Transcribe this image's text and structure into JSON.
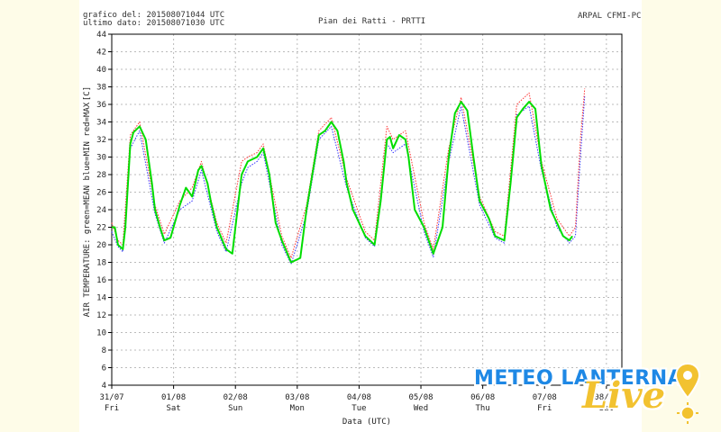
{
  "header": {
    "graph_date": "grafico del: 201508071044 UTC",
    "last_data": "ultimo dato: 201508071030 UTC",
    "station": "Pian dei Ratti - PRTTI",
    "source": "ARPAL CFMI-PC"
  },
  "logo": {
    "main": "METEO LANTERNA",
    "live": "Live"
  },
  "colors": {
    "mean": "#00dd00",
    "min": "#3333ff",
    "max": "#ff3333",
    "grid": "#bbbbbb",
    "axis": "#000000"
  },
  "chart_data": {
    "type": "line",
    "title": "Pian dei Ratti - PRTTI",
    "xlabel": "Data (UTC)",
    "ylabel": "AIR TEMPERATURE: green=MEAN  blue=MIN  red=MAX",
    "yunit": "[C]",
    "ylim": [
      4,
      44
    ],
    "yticks": [
      4,
      6,
      8,
      10,
      12,
      14,
      16,
      18,
      20,
      22,
      24,
      26,
      28,
      30,
      32,
      34,
      36,
      38,
      40,
      42,
      44
    ],
    "xlim": [
      0,
      8.25
    ],
    "xticks": [
      {
        "date": "31/07",
        "day": "Fri"
      },
      {
        "date": "01/08",
        "day": "Sat"
      },
      {
        "date": "02/08",
        "day": "Sun"
      },
      {
        "date": "03/08",
        "day": "Mon"
      },
      {
        "date": "04/08",
        "day": "Tue"
      },
      {
        "date": "05/08",
        "day": "Wed"
      },
      {
        "date": "06/08",
        "day": "Thu"
      },
      {
        "date": "07/08",
        "day": "Fri"
      },
      {
        "date": "08/08",
        "day": "Sat"
      }
    ],
    "grid": true,
    "series": [
      {
        "name": "MEAN",
        "color": "#00dd00",
        "x": [
          0.0,
          0.05,
          0.1,
          0.18,
          0.22,
          0.3,
          0.35,
          0.45,
          0.55,
          0.65,
          0.7,
          0.78,
          0.85,
          0.95,
          1.1,
          1.2,
          1.3,
          1.4,
          1.45,
          1.55,
          1.6,
          1.7,
          1.85,
          1.95,
          2.1,
          2.2,
          2.35,
          2.45,
          2.55,
          2.65,
          2.75,
          2.9,
          3.05,
          3.15,
          3.35,
          3.45,
          3.55,
          3.65,
          3.75,
          3.8,
          3.9,
          4.0,
          4.1,
          4.25,
          4.35,
          4.45,
          4.5,
          4.55,
          4.65,
          4.75,
          4.8,
          4.9,
          5.05,
          5.2,
          5.35,
          5.45,
          5.55,
          5.65,
          5.75,
          5.85,
          5.95,
          6.1,
          6.2,
          6.35,
          6.45,
          6.55,
          6.65,
          6.75,
          6.85,
          6.95,
          7.1,
          7.2,
          7.3,
          7.4,
          7.45
        ],
        "values": [
          22,
          22,
          20,
          19.5,
          22,
          31.5,
          32.8,
          33.5,
          32,
          27,
          24,
          22,
          20.5,
          20.8,
          24.5,
          26.5,
          25.5,
          28.5,
          29,
          27,
          25,
          22,
          19.5,
          19,
          28,
          29.5,
          30,
          31,
          28,
          22.5,
          20.5,
          18,
          18.5,
          24,
          32.5,
          33,
          34,
          33,
          29.5,
          27,
          24,
          22.5,
          21,
          20,
          25,
          32,
          32.3,
          31,
          32.5,
          32,
          30,
          24,
          22,
          19,
          22,
          30,
          35,
          36.3,
          35.3,
          30,
          25,
          23,
          21,
          20.5,
          27,
          34.5,
          35.5,
          36.3,
          35.5,
          29,
          24,
          22.5,
          21,
          20.5,
          21
        ]
      },
      {
        "name": "MIN",
        "color": "#3333ff",
        "x": [
          0.0,
          0.1,
          0.18,
          0.3,
          0.45,
          0.7,
          0.85,
          1.1,
          1.3,
          1.45,
          1.7,
          1.85,
          2.1,
          2.2,
          2.35,
          2.45,
          2.75,
          2.9,
          3.15,
          3.35,
          3.55,
          3.8,
          4.1,
          4.25,
          4.45,
          4.55,
          4.75,
          5.05,
          5.2,
          5.45,
          5.65,
          5.95,
          6.2,
          6.35,
          6.55,
          6.75,
          6.95,
          7.2,
          7.4,
          7.5,
          7.58,
          7.65
        ],
        "values": [
          21.5,
          19.8,
          19.2,
          31,
          33,
          23.5,
          20.2,
          24,
          25,
          28.5,
          21.5,
          19.2,
          27,
          28.8,
          29.5,
          30.5,
          20,
          17.8,
          23.5,
          32,
          33.5,
          26.5,
          20.8,
          19.8,
          31.5,
          30.5,
          31.5,
          21.5,
          18.6,
          29.5,
          35.8,
          24.5,
          20.8,
          20.2,
          34.8,
          35.8,
          28.5,
          22,
          20.2,
          21,
          30,
          37
        ]
      },
      {
        "name": "MAX",
        "color": "#ff3333",
        "x": [
          0.0,
          0.1,
          0.18,
          0.3,
          0.45,
          0.7,
          0.85,
          1.1,
          1.3,
          1.45,
          1.7,
          1.85,
          2.1,
          2.2,
          2.35,
          2.45,
          2.75,
          2.9,
          3.15,
          3.35,
          3.55,
          3.8,
          4.1,
          4.25,
          4.45,
          4.55,
          4.75,
          5.05,
          5.2,
          5.45,
          5.65,
          5.95,
          6.2,
          6.35,
          6.55,
          6.75,
          6.95,
          7.2,
          7.4,
          7.5,
          7.58,
          7.65
        ],
        "values": [
          22.5,
          20.5,
          20,
          32.5,
          34,
          24.5,
          21.2,
          25,
          26.5,
          29.5,
          22.5,
          20.2,
          29.5,
          30,
          30.5,
          31.5,
          21,
          18.5,
          24.5,
          33,
          34.5,
          27.5,
          21.5,
          20.5,
          33.5,
          32,
          33,
          22.5,
          19.5,
          31,
          36.8,
          25.5,
          21.5,
          21,
          36,
          37.3,
          29.5,
          23,
          21,
          22,
          32,
          37.8
        ]
      }
    ]
  }
}
